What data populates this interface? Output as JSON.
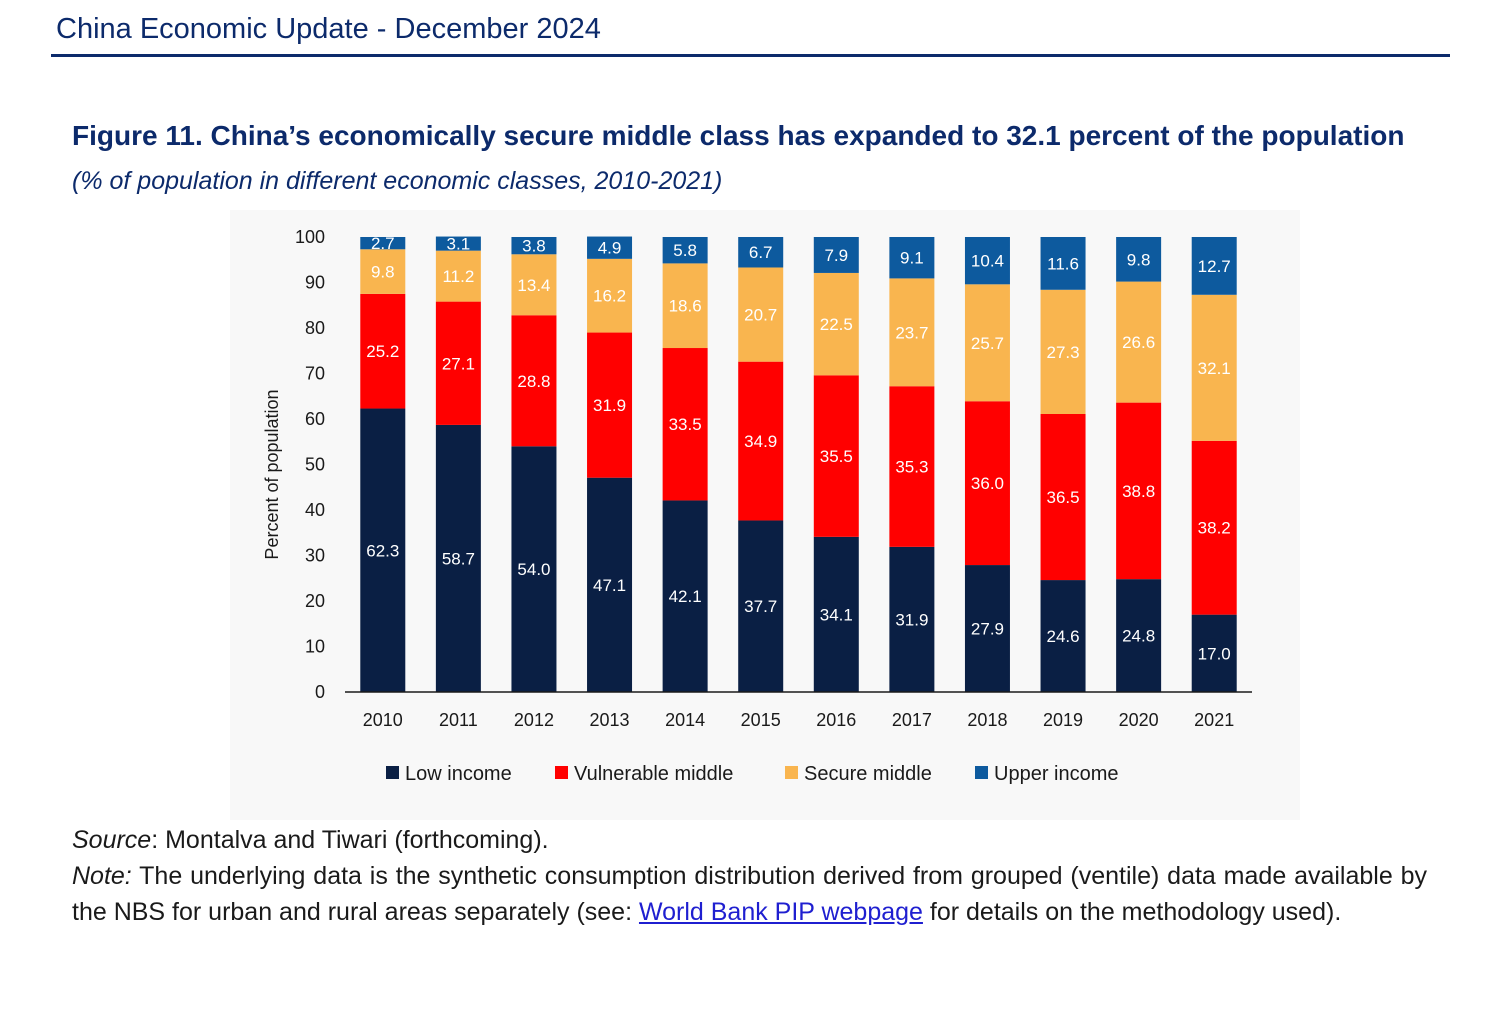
{
  "header": {
    "title": "China Economic Update - December 2024"
  },
  "figure": {
    "title": "Figure 11. China’s economically secure middle class has expanded to 32.1 percent of the population",
    "subtitle": "(% of population in different economic classes, 2010-2021)"
  },
  "chart_data": {
    "type": "bar",
    "stacked": true,
    "categories": [
      "2010",
      "2011",
      "2012",
      "2013",
      "2014",
      "2015",
      "2016",
      "2017",
      "2018",
      "2019",
      "2020",
      "2021"
    ],
    "series": [
      {
        "name": "Low income",
        "color": "#0a1f44",
        "label_color": "#ffffff",
        "values": [
          62.3,
          58.7,
          54.0,
          47.1,
          42.1,
          37.7,
          34.1,
          31.9,
          27.9,
          24.6,
          24.8,
          17.0
        ],
        "labels": [
          "62.3",
          "58.7",
          "54.0",
          "47.1",
          "42.1",
          "37.7",
          "34.1",
          "31.9",
          "27.9",
          "24.6",
          "24.8",
          "17.0"
        ]
      },
      {
        "name": "Vulnerable middle",
        "color": "#ff0000",
        "label_color": "#ffffff",
        "values": [
          25.2,
          27.1,
          28.8,
          31.9,
          33.5,
          34.9,
          35.5,
          35.3,
          36.0,
          36.5,
          38.8,
          38.2
        ],
        "labels": [
          "25.2",
          "27.1",
          "28.8",
          "31.9",
          "33.5",
          "34.9",
          "35.5",
          "35.3",
          "36.0",
          "36.5",
          "38.8",
          "38.2"
        ]
      },
      {
        "name": "Secure middle",
        "color": "#f9b54f",
        "label_color": "#ffffff",
        "values": [
          9.8,
          11.2,
          13.4,
          16.2,
          18.6,
          20.7,
          22.5,
          23.7,
          25.7,
          27.3,
          26.6,
          32.1
        ],
        "labels": [
          "9.8",
          "11.2",
          "13.4",
          "16.2",
          "18.6",
          "20.7",
          "22.5",
          "23.7",
          "25.7",
          "27.3",
          "26.6",
          "32.1"
        ]
      },
      {
        "name": "Upper income",
        "color": "#0d5a9e",
        "label_color": "#ffffff",
        "values": [
          2.7,
          3.1,
          3.8,
          4.9,
          5.8,
          6.7,
          7.9,
          9.1,
          10.4,
          11.6,
          9.8,
          12.7
        ],
        "labels": [
          "2.7",
          "3.1",
          "3.8",
          "4.9",
          "5.8",
          "6.7",
          "7.9",
          "9.1",
          "10.4",
          "11.6",
          "9.8",
          "12.7"
        ]
      }
    ],
    "ylabel": "Percent of population",
    "xlabel": "",
    "ylim": [
      0,
      100
    ],
    "yticks": [
      "0",
      "10",
      "20",
      "30",
      "40",
      "50",
      "60",
      "70",
      "80",
      "90",
      "100"
    ],
    "legend": "bottom"
  },
  "source": {
    "label": "Source",
    "text": ": Montalva and Tiwari (forthcoming).",
    "note_label": "Note:",
    "note_text": " The underlying data is the synthetic consumption distribution derived from grouped (ventile) data made available by the NBS for urban and rural areas separately (see: ",
    "link_text": "World Bank PIP webpage",
    "note_end": " for details on the methodology used)."
  }
}
